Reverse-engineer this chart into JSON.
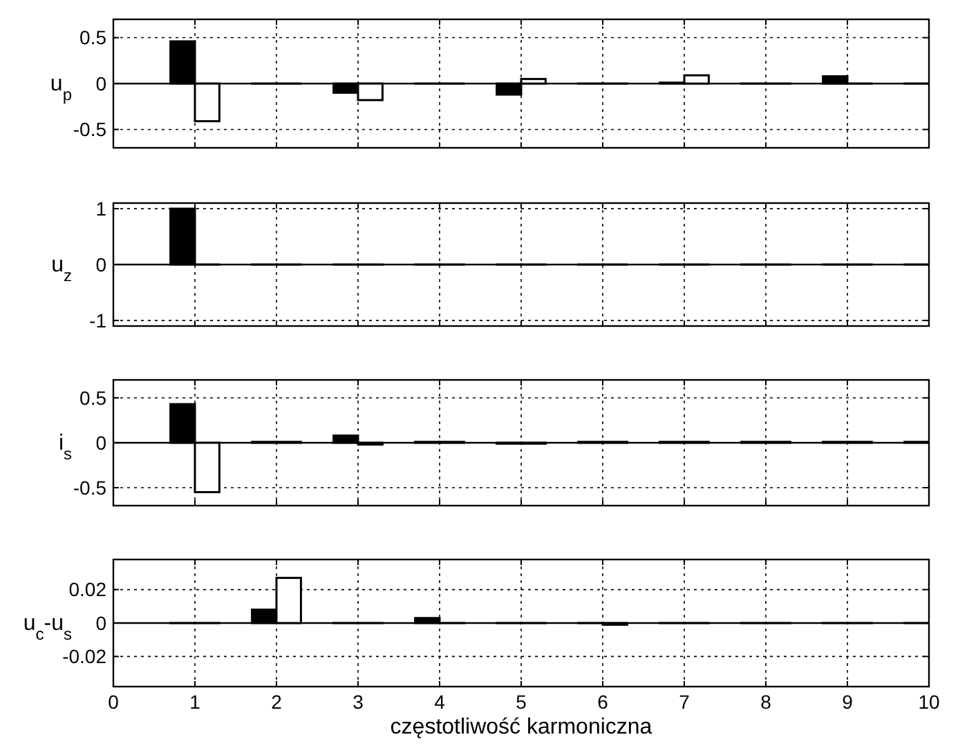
{
  "chart_data": [
    {
      "type": "bar",
      "x": [
        1,
        2,
        3,
        4,
        5,
        6,
        7,
        8,
        9,
        10
      ],
      "ylabel": "u$_{p}$",
      "xlim": [
        0,
        10
      ],
      "xticks": [
        0,
        1,
        2,
        3,
        4,
        5,
        6,
        7,
        8,
        9,
        10
      ],
      "ylim": [
        -0.7,
        0.7
      ],
      "yticks": [
        -0.5,
        0,
        0.5
      ],
      "grid": true,
      "tick_labels": "y",
      "series": [
        {
          "color": "#000000",
          "values": [
            0.46,
            0,
            -0.1,
            0,
            -0.12,
            0,
            0.01,
            0,
            0.08,
            0
          ]
        },
        {
          "color": "#ffffff",
          "values": [
            -0.41,
            0,
            -0.18,
            0,
            0.05,
            0,
            0.09,
            0,
            0,
            0
          ]
        }
      ]
    },
    {
      "type": "bar",
      "x": [
        1,
        2,
        3,
        4,
        5,
        6,
        7,
        8,
        9,
        10
      ],
      "ylabel": "u$_{z}$",
      "xlim": [
        0,
        10
      ],
      "xticks": [
        0,
        1,
        2,
        3,
        4,
        5,
        6,
        7,
        8,
        9,
        10
      ],
      "ylim": [
        -1.1,
        1.1
      ],
      "yticks": [
        -1,
        0,
        1
      ],
      "grid": true,
      "tick_labels": "y",
      "series": [
        {
          "color": "#000000",
          "values": [
            1,
            0,
            0,
            0,
            0,
            0,
            0,
            0,
            0,
            0
          ]
        },
        {
          "color": "#ffffff",
          "values": [
            0,
            0,
            0,
            0,
            0,
            0,
            0,
            0,
            0,
            0
          ]
        }
      ]
    },
    {
      "type": "bar",
      "x": [
        1,
        2,
        3,
        4,
        5,
        6,
        7,
        8,
        9,
        10
      ],
      "ylabel": "i$_{s}$",
      "xlim": [
        0,
        10
      ],
      "xticks": [
        0,
        1,
        2,
        3,
        4,
        5,
        6,
        7,
        8,
        9,
        10
      ],
      "ylim": [
        -0.7,
        0.7
      ],
      "yticks": [
        -0.5,
        0,
        0.5
      ],
      "grid": true,
      "tick_labels": "y",
      "series": [
        {
          "color": "#000000",
          "values": [
            0.43,
            0.01,
            0.08,
            0.01,
            -0.01,
            0.01,
            0.01,
            0.01,
            0.01,
            0.01
          ]
        },
        {
          "color": "#ffffff",
          "values": [
            -0.55,
            0.01,
            -0.02,
            0.01,
            -0.01,
            0.01,
            0.01,
            0.01,
            0.01,
            0
          ]
        }
      ]
    },
    {
      "type": "bar",
      "x": [
        1,
        2,
        3,
        4,
        5,
        6,
        7,
        8,
        9,
        10
      ],
      "ylabel": "u$_{c}$-u$_{s}$",
      "xlabel": "częstotliwość karmoniczna",
      "xlim": [
        0,
        10
      ],
      "xticks": [
        0,
        1,
        2,
        3,
        4,
        5,
        6,
        7,
        8,
        9,
        10
      ],
      "ylim": [
        -0.038,
        0.038
      ],
      "yticks": [
        -0.02,
        0,
        0.02
      ],
      "grid": true,
      "series": [
        {
          "color": "#000000",
          "values": [
            0,
            0.008,
            0,
            0.003,
            0,
            0,
            0,
            0,
            0,
            0
          ]
        },
        {
          "color": "#ffffff",
          "values": [
            0,
            0.027,
            0,
            0,
            0,
            -0.001,
            0,
            0,
            0,
            0
          ]
        }
      ]
    }
  ]
}
